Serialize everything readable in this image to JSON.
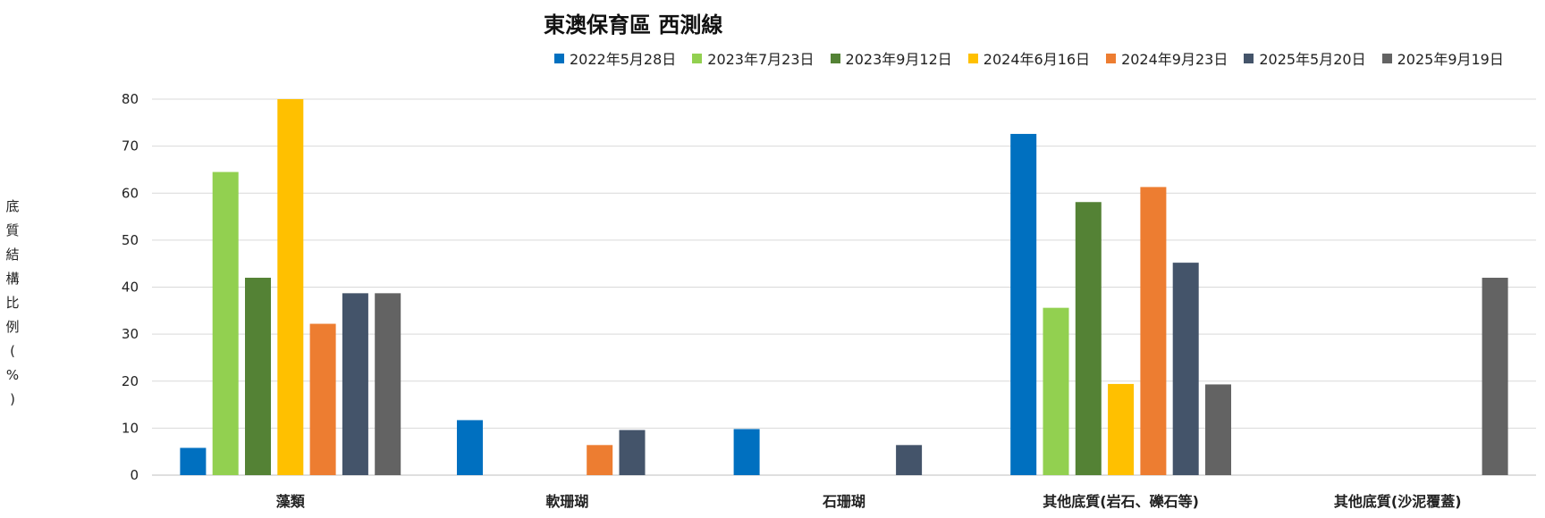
{
  "chart_data": {
    "type": "bar",
    "title": "東澳保育區 西測線",
    "ylabel": "底質結構比例(%)",
    "ylim": [
      0,
      80
    ],
    "yticks": [
      0,
      10,
      20,
      30,
      40,
      50,
      60,
      70,
      80
    ],
    "grid": true,
    "legend_position": "top",
    "categories": [
      "藻類",
      "軟珊瑚",
      "石珊瑚",
      "其他底質(岩石、礫石等)",
      "其他底質(沙泥覆蓋)"
    ],
    "series": [
      {
        "name": "2022年5月28日",
        "color": "#0070C0",
        "values": [
          5.8,
          11.7,
          9.8,
          72.6,
          0
        ]
      },
      {
        "name": "2023年7月23日",
        "color": "#92D050",
        "values": [
          64.5,
          0,
          0,
          35.6,
          0
        ]
      },
      {
        "name": "2023年9月12日",
        "color": "#548235",
        "values": [
          42,
          0,
          0,
          58.1,
          0
        ]
      },
      {
        "name": "2024年6月16日",
        "color": "#FFC000",
        "values": [
          80,
          0,
          0,
          19.4,
          0
        ]
      },
      {
        "name": "2024年9月23日",
        "color": "#ED7D31",
        "values": [
          32.2,
          6.4,
          0,
          61.3,
          0
        ]
      },
      {
        "name": "2025年5月20日",
        "color": "#44546A",
        "values": [
          38.7,
          9.6,
          6.4,
          45.2,
          0
        ]
      },
      {
        "name": "2025年9月19日",
        "color": "#636363",
        "values": [
          38.7,
          0,
          0,
          19.3,
          42
        ]
      }
    ]
  }
}
